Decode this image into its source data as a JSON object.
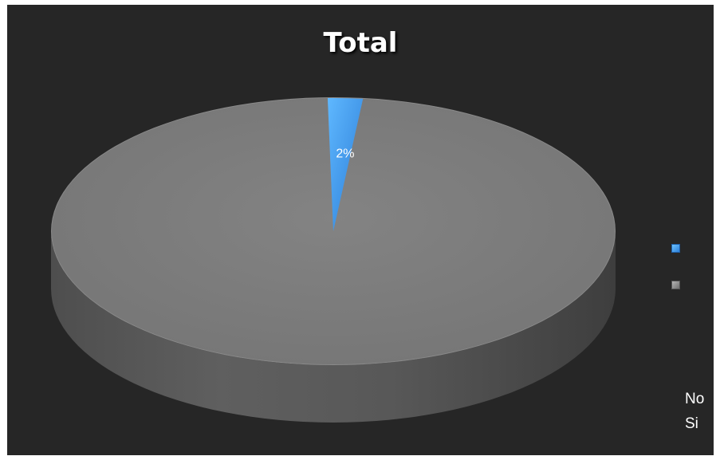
{
  "chart_data": {
    "type": "pie",
    "title": "Total",
    "categories": [
      "No",
      "Si"
    ],
    "values": [
      2,
      98
    ],
    "data_labels": [
      "2%",
      ""
    ],
    "legend_position": "right",
    "style": "3d",
    "colors": [
      "#3a8ee6",
      "#7f7f7f"
    ]
  }
}
